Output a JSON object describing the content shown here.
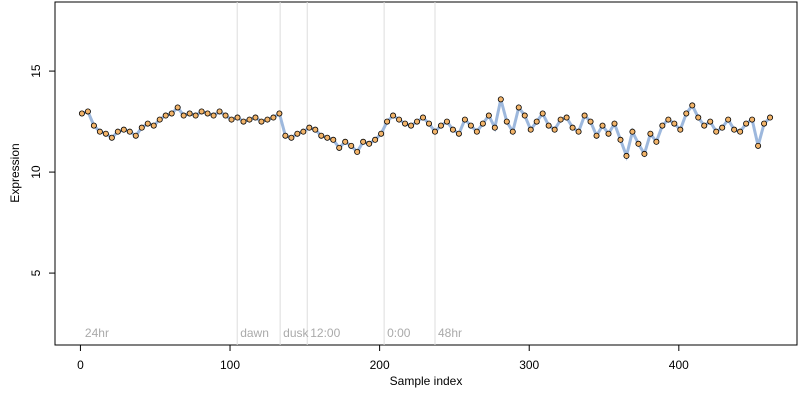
{
  "chart_data": {
    "type": "scatter",
    "xlabel": "Sample index",
    "ylabel": "Expression",
    "xlim": [
      -17,
      479
    ],
    "ylim": [
      1.44,
      18.42
    ],
    "xticks": [
      0,
      100,
      200,
      300,
      400
    ],
    "yticks": [
      5,
      10,
      15
    ],
    "vlines": [
      104.8,
      133.5,
      151.6,
      203,
      237
    ],
    "vline_color": "#dddddd",
    "annotations": [
      {
        "text": "24hr",
        "x": 1
      },
      {
        "text": "dawn",
        "x": 104.8
      },
      {
        "text": "dusk",
        "x": 133.5
      },
      {
        "text": "12:00",
        "x": 151.6
      },
      {
        "text": "0:00",
        "x": 203
      },
      {
        "text": "48hr",
        "x": 237
      }
    ],
    "annotation_y": 2,
    "line_color": "#9db8dd",
    "x": [
      1,
      5,
      9,
      13,
      17,
      21,
      25,
      29,
      33,
      37,
      41,
      45,
      49,
      53,
      57,
      61,
      65,
      69,
      73,
      77,
      81,
      85,
      89,
      93,
      97,
      101,
      105,
      109,
      113,
      117,
      121,
      125,
      129,
      133,
      137,
      141,
      145,
      149,
      153,
      157,
      161,
      165,
      169,
      173,
      177,
      181,
      185,
      189,
      193,
      197,
      201,
      205,
      209,
      213,
      217,
      221,
      225,
      229,
      233,
      237,
      241,
      245,
      249,
      253,
      257,
      261,
      265,
      269,
      273,
      277,
      281,
      285,
      289,
      293,
      297,
      301,
      305,
      309,
      313,
      317,
      321,
      325,
      329,
      333,
      337,
      341,
      345,
      349,
      353,
      357,
      361,
      365,
      369,
      373,
      377,
      381,
      385,
      389,
      393,
      397,
      401,
      405,
      409,
      413,
      417,
      421,
      425,
      429,
      433,
      437,
      441,
      445,
      449,
      453,
      457,
      461
    ],
    "series": [
      {
        "color": "#f2b46a",
        "values": [
          12.9,
          13.0,
          12.3,
          12.0,
          11.9,
          11.7,
          12.0,
          12.1,
          12.0,
          11.8,
          12.2,
          12.4,
          12.3,
          12.6,
          12.8,
          12.9,
          13.2,
          12.8,
          12.9,
          12.8,
          13.0,
          12.9,
          12.8,
          13.0,
          12.8,
          12.6,
          12.7,
          12.5,
          12.6,
          12.7,
          12.5,
          12.6,
          12.7,
          12.9,
          11.8,
          11.7,
          11.9,
          12.0,
          12.2,
          12.1,
          11.8,
          11.7,
          11.6,
          11.2,
          11.5,
          11.3,
          11.0,
          11.5,
          11.4,
          11.6,
          11.9,
          12.5,
          12.8,
          12.6,
          12.4,
          12.3,
          12.5,
          12.7,
          12.4,
          12.0,
          12.3,
          12.5,
          12.1,
          11.9,
          12.6,
          12.3,
          12.0,
          12.4,
          12.8,
          12.2,
          13.6,
          12.5,
          12.0,
          13.2,
          12.8,
          12.1,
          12.5,
          12.9,
          12.3,
          12.1,
          12.6,
          12.7,
          12.2,
          12.0,
          12.8,
          12.5,
          11.8,
          12.3,
          11.9,
          12.4,
          11.6,
          10.8,
          12.0,
          11.4,
          10.9,
          11.9,
          11.5,
          12.3,
          12.6,
          12.4,
          12.1,
          12.9,
          13.3,
          12.7,
          12.3,
          12.5,
          12.0,
          12.2,
          12.6,
          12.1,
          12.0,
          12.4,
          12.6,
          11.3,
          12.4,
          12.7
        ]
      }
    ]
  }
}
